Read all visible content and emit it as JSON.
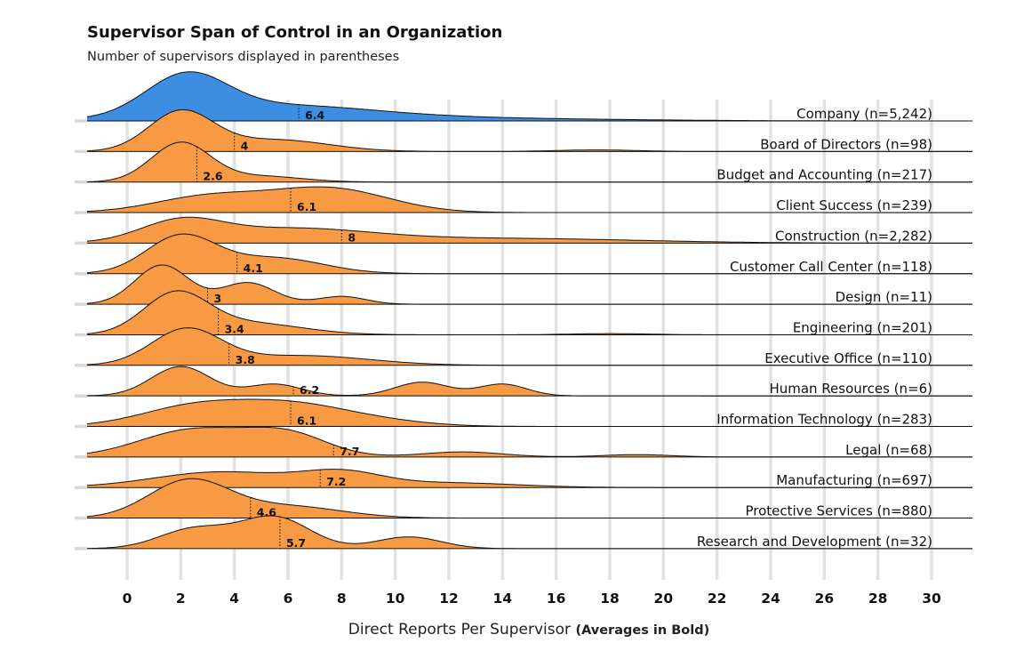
{
  "chart_data": {
    "type": "ridgeline",
    "title": "Supervisor Span of Control in an Organization",
    "subtitle": "Number of supervisors displayed in parentheses",
    "xlabel": "Direct Reports Per Supervisor",
    "xlabel_note": "(Averages in Bold)",
    "xlim": [
      0,
      30
    ],
    "x_ticks": [
      "0",
      "2",
      "4",
      "6",
      "8",
      "10",
      "12",
      "14",
      "16",
      "18",
      "20",
      "22",
      "24",
      "26",
      "28",
      "30"
    ],
    "grid": "vertical",
    "colors": {
      "company": "#3d8ee0",
      "department": "#f79a43",
      "outline": "#111111",
      "grid": "#e2e2e2"
    },
    "series": [
      {
        "name": "Company (n=5,242)",
        "mean": 6.4,
        "mean_label": "6.4",
        "highlight": true,
        "peaks": [
          [
            2.2,
            1.0,
            1.5
          ],
          [
            5.5,
            0.35,
            3.5
          ],
          [
            11,
            0.08,
            6
          ]
        ]
      },
      {
        "name": "Board of Directors (n=98)",
        "mean": 4,
        "mean_label": "4",
        "highlight": false,
        "peaks": [
          [
            2,
            1.0,
            1.2
          ],
          [
            5.5,
            0.3,
            2
          ],
          [
            17.5,
            0.04,
            1.5
          ]
        ]
      },
      {
        "name": "Budget and Accounting (n=217)",
        "mean": 2.6,
        "mean_label": "2.6",
        "highlight": false,
        "peaks": [
          [
            2,
            1.0,
            1.1
          ],
          [
            5,
            0.15,
            1.5
          ]
        ]
      },
      {
        "name": "Client Success (n=239)",
        "mean": 6.1,
        "mean_label": "6.1",
        "highlight": false,
        "peaks": [
          [
            3,
            0.4,
            2
          ],
          [
            7.5,
            0.62,
            2.2
          ]
        ]
      },
      {
        "name": "Construction (n=2,282)",
        "mean": 8,
        "mean_label": "8",
        "highlight": false,
        "peaks": [
          [
            2,
            0.5,
            1.5
          ],
          [
            6,
            0.35,
            3
          ],
          [
            14,
            0.12,
            5
          ]
        ]
      },
      {
        "name": "Customer Call Center (n=118)",
        "mean": 4.1,
        "mean_label": "4.1",
        "highlight": false,
        "peaks": [
          [
            2,
            0.95,
            1.3
          ],
          [
            5.5,
            0.4,
            1.8
          ]
        ]
      },
      {
        "name": "Design (n=11)",
        "mean": 3,
        "mean_label": "3",
        "highlight": false,
        "peaks": [
          [
            1.3,
            1.0,
            1.0
          ],
          [
            4.5,
            0.55,
            1.0
          ],
          [
            8,
            0.2,
            0.9
          ]
        ]
      },
      {
        "name": "Engineering (n=201)",
        "mean": 3.4,
        "mean_label": "3.4",
        "highlight": false,
        "peaks": [
          [
            1.8,
            1.0,
            1.2
          ],
          [
            4.5,
            0.3,
            2
          ],
          [
            18,
            0.03,
            1.5
          ]
        ]
      },
      {
        "name": "Executive Office (n=110)",
        "mean": 3.8,
        "mean_label": "3.8",
        "highlight": false,
        "peaks": [
          [
            2.2,
            0.9,
            1.3
          ],
          [
            6.5,
            0.25,
            2.5
          ]
        ]
      },
      {
        "name": "Human Resources (n=6)",
        "mean": 6.2,
        "mean_label": "6.2",
        "highlight": false,
        "peaks": [
          [
            2,
            0.75,
            1.1
          ],
          [
            5.5,
            0.3,
            1
          ],
          [
            11,
            0.35,
            1
          ],
          [
            14,
            0.3,
            0.9
          ]
        ]
      },
      {
        "name": "Information Technology (n=283)",
        "mean": 6.1,
        "mean_label": "6.1",
        "highlight": false,
        "peaks": [
          [
            2.5,
            0.5,
            2.0
          ],
          [
            6,
            0.5,
            2.0
          ],
          [
            9,
            0.15,
            2
          ]
        ]
      },
      {
        "name": "Legal (n=68)",
        "mean": 7.7,
        "mean_label": "7.7",
        "highlight": false,
        "peaks": [
          [
            2.5,
            0.7,
            2.0
          ],
          [
            6,
            0.55,
            1.5
          ],
          [
            12.5,
            0.13,
            1.5
          ],
          [
            19,
            0.06,
            1.3
          ]
        ]
      },
      {
        "name": "Manufacturing (n=697)",
        "mean": 7.2,
        "mean_label": "7.2",
        "highlight": false,
        "peaks": [
          [
            3.5,
            0.4,
            2.5
          ],
          [
            8,
            0.35,
            1.5
          ],
          [
            12,
            0.12,
            2.5
          ]
        ]
      },
      {
        "name": "Protective Services (n=880)",
        "mean": 4.6,
        "mean_label": "4.6",
        "highlight": false,
        "peaks": [
          [
            2.3,
            0.95,
            1.5
          ],
          [
            6,
            0.3,
            2
          ]
        ]
      },
      {
        "name": "Research and Development (n=32)",
        "mean": 5.7,
        "mean_label": "5.7",
        "highlight": false,
        "peaks": [
          [
            2.5,
            0.5,
            1.3
          ],
          [
            5.5,
            0.8,
            1.3
          ],
          [
            10.5,
            0.3,
            1.2
          ]
        ]
      }
    ]
  }
}
